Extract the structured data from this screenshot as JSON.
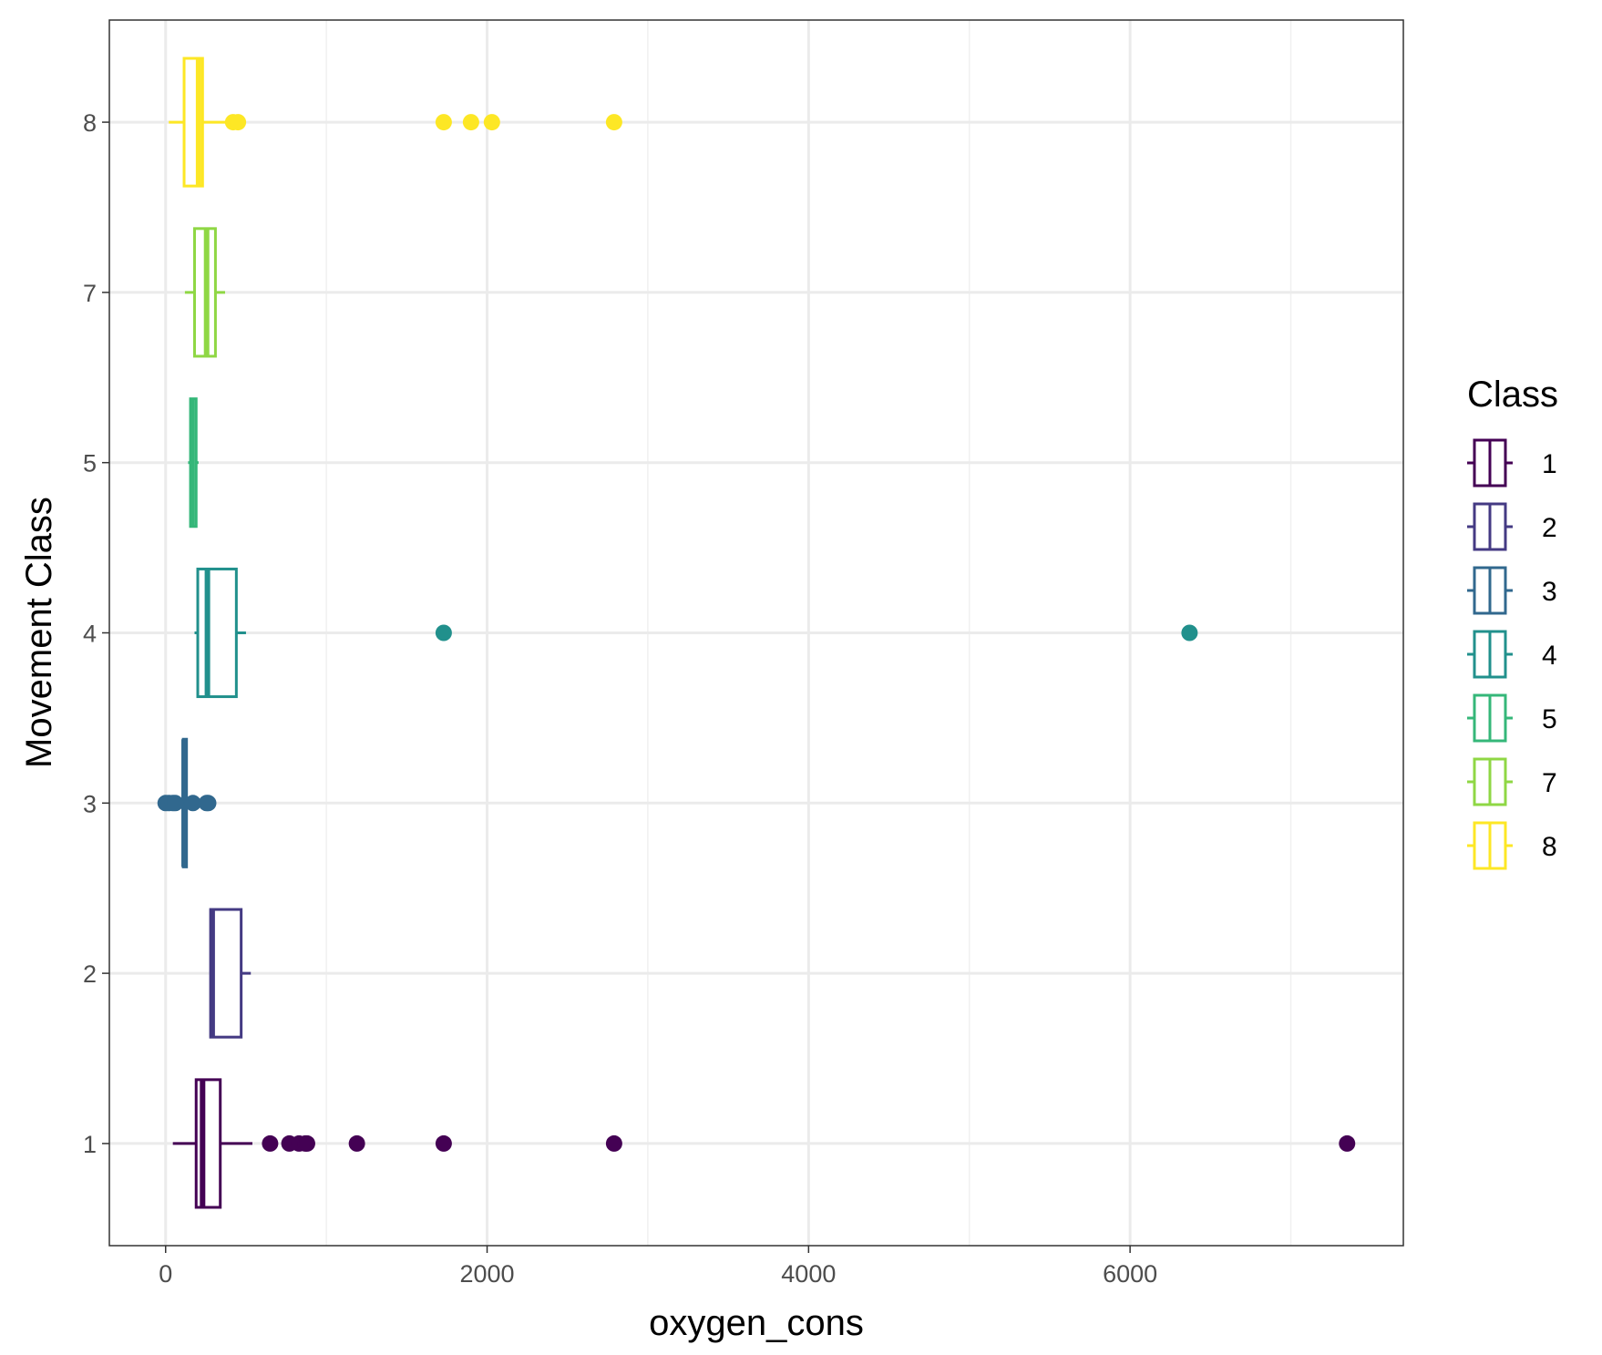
{
  "chart_data": {
    "type": "boxplot",
    "orientation": "horizontal",
    "xlabel": "oxygen_cons",
    "ylabel": "Movement Class",
    "xlim": [
      -350,
      7700
    ],
    "x_ticks": [
      0,
      2000,
      4000,
      6000
    ],
    "x_tick_labels": [
      "0",
      "2000",
      "4000",
      "6000"
    ],
    "categories": [
      "1",
      "2",
      "3",
      "4",
      "5",
      "7",
      "8"
    ],
    "grid": true,
    "legend": {
      "title": "Class",
      "placement": "right",
      "entries": [
        "1",
        "2",
        "3",
        "4",
        "5",
        "7",
        "8"
      ]
    },
    "series": [
      {
        "name": "1",
        "color": "#440154",
        "whisker_low": 45,
        "q1": 190,
        "median": 230,
        "q3": 340,
        "whisker_high": 540,
        "outliers": [
          650,
          770,
          830,
          870,
          880,
          1190,
          1730,
          2790,
          7350
        ]
      },
      {
        "name": "2",
        "color": "#443A83",
        "whisker_low": 280,
        "q1": 280,
        "median": 290,
        "q3": 470,
        "whisker_high": 530,
        "outliers": []
      },
      {
        "name": "3",
        "color": "#31688E",
        "whisker_low": 100,
        "q1": 110,
        "median": 115,
        "q3": 130,
        "whisker_high": 140,
        "outliers": [
          0,
          20,
          45,
          60,
          170,
          255,
          265
        ]
      },
      {
        "name": "4",
        "color": "#21908C",
        "whisker_low": 180,
        "q1": 200,
        "median": 260,
        "q3": 440,
        "whisker_high": 500,
        "outliers": [
          1730,
          6370
        ]
      },
      {
        "name": "5",
        "color": "#35B779",
        "whisker_low": 140,
        "q1": 155,
        "median": 165,
        "q3": 190,
        "whisker_high": 205,
        "outliers": []
      },
      {
        "name": "7",
        "color": "#8FD744",
        "whisker_low": 120,
        "q1": 180,
        "median": 255,
        "q3": 310,
        "whisker_high": 370,
        "outliers": []
      },
      {
        "name": "8",
        "color": "#FDE725",
        "whisker_low": 20,
        "q1": 115,
        "median": 205,
        "q3": 230,
        "whisker_high": 380,
        "outliers": [
          420,
          450,
          1730,
          1900,
          2030,
          2790
        ]
      }
    ]
  }
}
